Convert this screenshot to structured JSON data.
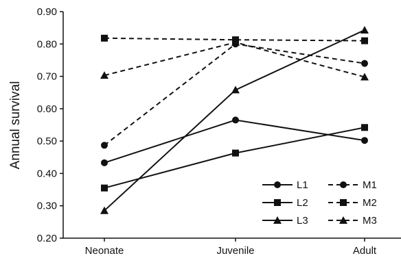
{
  "chart_data": {
    "type": "line",
    "title": "",
    "xlabel": "",
    "ylabel": "Annual survival",
    "categories": [
      "Neonate",
      "Juvenile",
      "Adult"
    ],
    "ylim": [
      0.2,
      0.9
    ],
    "yticks": [
      "0.20",
      "0.30",
      "0.40",
      "0.50",
      "0.60",
      "0.70",
      "0.80",
      "0.90"
    ],
    "grid": false,
    "legend_position": "bottom-right",
    "series": [
      {
        "name": "L1",
        "marker": "circle",
        "dashed": false,
        "values": [
          0.433,
          0.565,
          0.502
        ]
      },
      {
        "name": "L2",
        "marker": "square",
        "dashed": false,
        "values": [
          0.355,
          0.463,
          0.542
        ]
      },
      {
        "name": "L3",
        "marker": "triangle",
        "dashed": false,
        "values": [
          0.285,
          0.658,
          0.843
        ]
      },
      {
        "name": "M1",
        "marker": "circle",
        "dashed": true,
        "values": [
          0.487,
          0.8,
          0.74
        ]
      },
      {
        "name": "M2",
        "marker": "square",
        "dashed": true,
        "values": [
          0.818,
          0.813,
          0.81
        ]
      },
      {
        "name": "M3",
        "marker": "triangle",
        "dashed": true,
        "values": [
          0.703,
          0.805,
          0.698
        ]
      }
    ],
    "colors": {
      "line": "#111111",
      "axis": "#111111"
    }
  }
}
